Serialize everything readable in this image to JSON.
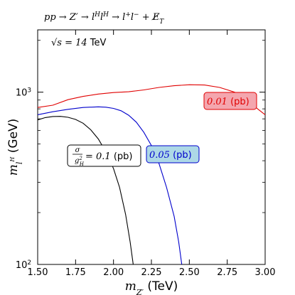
{
  "chart_data": {
    "type": "line",
    "title": "pp → Z′ → l^H l^H‾ → l⁺ l⁻ + E̸_T",
    "title_parts": {
      "prefix": "pp → Z′ → l",
      "sup1": "H",
      "mid": "l",
      "sup2": "H",
      "suffix": " → l",
      "sup3": "+",
      "l2": "l",
      "sup4": "−",
      "met": " + E̸",
      "sub": "T"
    },
    "annotation": {
      "sqrt_s": "√s = 14",
      "unit": "TeV"
    },
    "xlabel": {
      "symbol": "m",
      "sub": "Z′",
      "unit": " (TeV)"
    },
    "ylabel": {
      "symbol": "m",
      "sub": "l",
      "subsup": "H",
      "unit": " (GeV)"
    },
    "xlim": [
      1.5,
      3.0
    ],
    "ylim": [
      100,
      2300
    ],
    "yscale": "log",
    "x_ticks": [
      "1.50",
      "1.75",
      "2.00",
      "2.25",
      "2.50",
      "2.75",
      "3.00"
    ],
    "x_tick_values": [
      1.5,
      1.75,
      2.0,
      2.25,
      2.5,
      2.75,
      3.0
    ],
    "y_ticks": [
      {
        "value": 100,
        "base": "10",
        "exp": "2"
      },
      {
        "value": 1000,
        "base": "10",
        "exp": "3"
      }
    ],
    "grid": false,
    "series": [
      {
        "color": "#000000",
        "label_value": "σ/g²_H = 0.1 (pb)",
        "label_parts": {
          "num": "σ",
          "den": "g",
          "den_sup": "2",
          "den_sub": "H",
          "eq": "= 0.1",
          "unit": " (pb)"
        },
        "label_bg": "#ffffff",
        "label_border": "#000000",
        "label_color": "#000000",
        "points": [
          [
            1.5,
            690
          ],
          [
            1.55,
            712
          ],
          [
            1.6,
            722
          ],
          [
            1.65,
            724
          ],
          [
            1.7,
            715
          ],
          [
            1.75,
            695
          ],
          [
            1.8,
            660
          ],
          [
            1.85,
            605
          ],
          [
            1.9,
            535
          ],
          [
            1.95,
            450
          ],
          [
            2.0,
            360
          ],
          [
            2.04,
            280
          ],
          [
            2.08,
            195
          ],
          [
            2.11,
            135
          ],
          [
            2.13,
            100
          ]
        ]
      },
      {
        "color": "#0000cc",
        "label_value": "0.05 (pb)",
        "label_parts": {
          "num": "0.05",
          "unit": " (pb)"
        },
        "label_bg": "#add8e6",
        "label_border": "#0000cc",
        "label_color": "#0000cc",
        "points": [
          [
            1.5,
            740
          ],
          [
            1.6,
            770
          ],
          [
            1.7,
            795
          ],
          [
            1.8,
            815
          ],
          [
            1.9,
            822
          ],
          [
            1.95,
            818
          ],
          [
            2.0,
            805
          ],
          [
            2.05,
            780
          ],
          [
            2.1,
            735
          ],
          [
            2.15,
            670
          ],
          [
            2.2,
            585
          ],
          [
            2.25,
            490
          ],
          [
            2.3,
            385
          ],
          [
            2.35,
            280
          ],
          [
            2.4,
            190
          ],
          [
            2.43,
            135
          ],
          [
            2.45,
            100
          ]
        ]
      },
      {
        "color": "#e00000",
        "label_value": "0.01 (pb)",
        "label_parts": {
          "num": "0.01",
          "unit": " (pb)"
        },
        "label_bg": "#f4a6ae",
        "label_border": "#e00000",
        "label_color": "#e00000",
        "points": [
          [
            1.5,
            815
          ],
          [
            1.6,
            840
          ],
          [
            1.7,
            905
          ],
          [
            1.8,
            945
          ],
          [
            1.9,
            975
          ],
          [
            2.0,
            995
          ],
          [
            2.1,
            1005
          ],
          [
            2.2,
            1030
          ],
          [
            2.3,
            1065
          ],
          [
            2.4,
            1090
          ],
          [
            2.5,
            1105
          ],
          [
            2.6,
            1100
          ],
          [
            2.7,
            1065
          ],
          [
            2.8,
            1000
          ],
          [
            2.85,
            945
          ],
          [
            2.9,
            870
          ],
          [
            2.95,
            800
          ],
          [
            3.0,
            740
          ]
        ]
      }
    ]
  }
}
